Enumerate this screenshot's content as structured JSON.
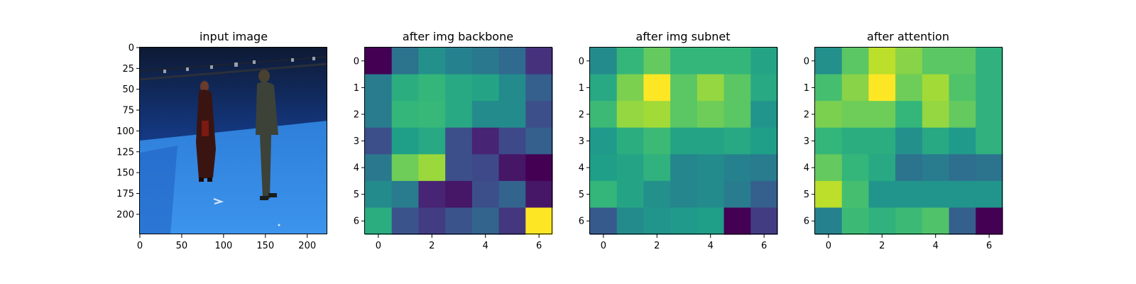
{
  "chart_data": [
    {
      "type": "image",
      "title": "input image",
      "x_ticks": [
        "0",
        "50",
        "100",
        "150",
        "200"
      ],
      "y_ticks": [
        "0",
        "25",
        "50",
        "75",
        "100",
        "125",
        "150",
        "175",
        "200"
      ],
      "xlim": [
        0,
        224
      ],
      "ylim": [
        224,
        0
      ],
      "grid": false
    },
    {
      "type": "heatmap",
      "title": "after img backbone",
      "colormap": "viridis",
      "x_ticks": [
        "0",
        "2",
        "4",
        "6"
      ],
      "y_ticks": [
        "0",
        "1",
        "2",
        "3",
        "4",
        "5",
        "6"
      ],
      "values": [
        [
          0.0,
          0.38,
          0.5,
          0.44,
          0.4,
          0.34,
          0.14
        ],
        [
          0.42,
          0.62,
          0.66,
          0.6,
          0.58,
          0.48,
          0.3
        ],
        [
          0.42,
          0.66,
          0.67,
          0.6,
          0.48,
          0.48,
          0.24
        ],
        [
          0.24,
          0.56,
          0.6,
          0.24,
          0.1,
          0.22,
          0.3
        ],
        [
          0.4,
          0.78,
          0.85,
          0.24,
          0.22,
          0.06,
          0.0
        ],
        [
          0.48,
          0.42,
          0.1,
          0.06,
          0.24,
          0.32,
          0.06
        ],
        [
          0.62,
          0.26,
          0.18,
          0.26,
          0.32,
          0.16,
          1.0
        ]
      ]
    },
    {
      "type": "heatmap",
      "title": "after img subnet",
      "colormap": "viridis",
      "x_ticks": [
        "0",
        "2",
        "4",
        "6"
      ],
      "y_ticks": [
        "0",
        "1",
        "2",
        "3",
        "4",
        "5",
        "6"
      ],
      "values": [
        [
          0.48,
          0.66,
          0.76,
          0.66,
          0.66,
          0.66,
          0.58
        ],
        [
          0.6,
          0.8,
          1.0,
          0.74,
          0.84,
          0.74,
          0.6
        ],
        [
          0.68,
          0.84,
          0.86,
          0.74,
          0.78,
          0.74,
          0.52
        ],
        [
          0.54,
          0.62,
          0.68,
          0.58,
          0.58,
          0.6,
          0.56
        ],
        [
          0.56,
          0.58,
          0.64,
          0.46,
          0.48,
          0.44,
          0.42
        ],
        [
          0.66,
          0.58,
          0.5,
          0.46,
          0.48,
          0.42,
          0.3
        ],
        [
          0.28,
          0.48,
          0.52,
          0.54,
          0.56,
          0.0,
          0.18
        ]
      ]
    },
    {
      "type": "heatmap",
      "title": "after attention",
      "colormap": "viridis",
      "x_ticks": [
        "0",
        "2",
        "4",
        "6"
      ],
      "y_ticks": [
        "0",
        "1",
        "2",
        "3",
        "4",
        "5",
        "6"
      ],
      "values": [
        [
          0.5,
          0.74,
          0.9,
          0.82,
          0.74,
          0.74,
          0.64
        ],
        [
          0.7,
          0.82,
          1.0,
          0.78,
          0.86,
          0.72,
          0.64
        ],
        [
          0.8,
          0.78,
          0.78,
          0.66,
          0.84,
          0.76,
          0.64
        ],
        [
          0.66,
          0.62,
          0.62,
          0.5,
          0.6,
          0.54,
          0.64
        ],
        [
          0.76,
          0.66,
          0.6,
          0.38,
          0.42,
          0.36,
          0.38
        ],
        [
          0.9,
          0.7,
          0.52,
          0.52,
          0.52,
          0.52,
          0.52
        ],
        [
          0.44,
          0.68,
          0.64,
          0.68,
          0.72,
          0.3,
          0.0
        ]
      ]
    }
  ]
}
